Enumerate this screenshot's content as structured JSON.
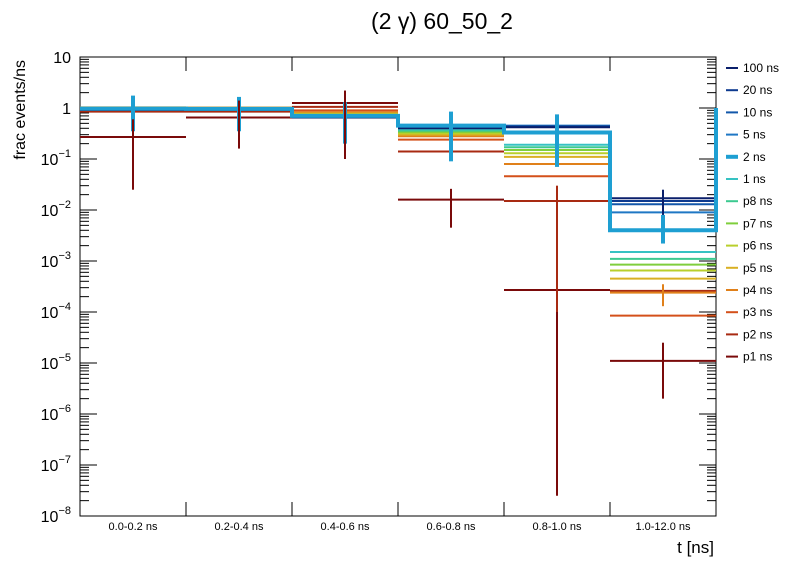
{
  "chart_data": {
    "type": "histogram",
    "title": "(2 γ) 60_50_2",
    "xlabel": "t [ns]",
    "ylabel": "frac events/ns",
    "yscale": "log",
    "ylim": [
      1e-08,
      10
    ],
    "categories": [
      "0.0-0.2 ns",
      "0.2-0.4 ns",
      "0.4-0.6 ns",
      "0.6-0.8 ns",
      "0.8-1.0 ns",
      "1.0-12.0 ns"
    ],
    "y_ticks": [
      {
        "exp": -8,
        "base": "10",
        "sup": "−8"
      },
      {
        "exp": -7,
        "base": "10",
        "sup": "−7"
      },
      {
        "exp": -6,
        "base": "10",
        "sup": "−6"
      },
      {
        "exp": -5,
        "base": "10",
        "sup": "−5"
      },
      {
        "exp": -4,
        "base": "10",
        "sup": "−4"
      },
      {
        "exp": -3,
        "base": "10",
        "sup": "−3"
      },
      {
        "exp": -2,
        "base": "10",
        "sup": "−2"
      },
      {
        "exp": -1,
        "base": "10",
        "sup": "−1"
      },
      {
        "exp": 0,
        "base": "1",
        "sup": ""
      },
      {
        "exp": 1,
        "base": "10",
        "sup": ""
      }
    ],
    "legend_position": "right",
    "highlight_series": "2 ns",
    "series": [
      {
        "name": "100 ns",
        "color": "#0a1f6b",
        "values": [
          0.92,
          0.92,
          0.65,
          0.4,
          0.42,
          0.017
        ]
      },
      {
        "name": "20 ns",
        "color": "#0d3a8f",
        "values": [
          0.93,
          0.93,
          0.66,
          0.41,
          0.43,
          0.015
        ]
      },
      {
        "name": "10 ns",
        "color": "#1257aa",
        "values": [
          0.94,
          0.94,
          0.67,
          0.42,
          0.44,
          0.013
        ]
      },
      {
        "name": "5 ns",
        "color": "#1f77c4",
        "values": [
          0.95,
          0.95,
          0.69,
          0.43,
          0.45,
          0.009
        ]
      },
      {
        "name": "2 ns",
        "color": "#1e9fd2",
        "values": [
          0.97,
          0.96,
          0.7,
          0.45,
          0.33,
          0.004
        ]
      },
      {
        "name": "1 ns",
        "color": "#36c2c2",
        "values": [
          0.98,
          0.97,
          0.71,
          0.38,
          0.19,
          0.0015
        ]
      },
      {
        "name": "p8 ns",
        "color": "#3cc990",
        "values": [
          0.99,
          0.98,
          0.72,
          0.36,
          0.17,
          0.0011
        ]
      },
      {
        "name": "p7 ns",
        "color": "#7fce3c",
        "values": [
          1.0,
          0.99,
          0.73,
          0.34,
          0.15,
          0.00085
        ]
      },
      {
        "name": "p6 ns",
        "color": "#b9cf2c",
        "values": [
          1.01,
          1.0,
          0.75,
          0.32,
          0.13,
          0.00065
        ]
      },
      {
        "name": "p5 ns",
        "color": "#d9b023",
        "values": [
          1.02,
          1.01,
          0.78,
          0.3,
          0.11,
          0.00045
        ]
      },
      {
        "name": "p4 ns",
        "color": "#e0801a",
        "values": [
          1.03,
          1.02,
          0.82,
          0.28,
          0.08,
          0.00024
        ]
      },
      {
        "name": "p3 ns",
        "color": "#d4501a",
        "values": [
          1.0,
          1.0,
          0.9,
          0.24,
          0.046,
          8.5e-05
        ]
      },
      {
        "name": "p2 ns",
        "color": "#a82a12",
        "values": [
          0.85,
          0.85,
          1.05,
          0.14,
          0.015,
          0.00026
        ]
      },
      {
        "name": "p1 ns",
        "color": "#7a0a0a",
        "values": [
          0.27,
          0.65,
          1.25,
          0.016,
          0.00027,
          1.1e-05
        ]
      }
    ],
    "error_bars": [
      {
        "series": "2 ns",
        "bin": 0,
        "low": 0.35,
        "high": 1.75
      },
      {
        "series": "2 ns",
        "bin": 1,
        "low": 0.35,
        "high": 1.65
      },
      {
        "series": "2 ns",
        "bin": 2,
        "low": 0.2,
        "high": 1.3
      },
      {
        "series": "2 ns",
        "bin": 3,
        "low": 0.09,
        "high": 0.85
      },
      {
        "series": "2 ns",
        "bin": 4,
        "low": 0.07,
        "high": 0.75
      },
      {
        "series": "2 ns",
        "bin": 5,
        "low": 0.0022,
        "high": 0.008
      },
      {
        "series": "p1 ns",
        "bin": 0,
        "low": 0.025,
        "high": 0.6
      },
      {
        "series": "p1 ns",
        "bin": 1,
        "low": 0.16,
        "high": 1.4
      },
      {
        "series": "p1 ns",
        "bin": 2,
        "low": 0.1,
        "high": 2.2
      },
      {
        "series": "p1 ns",
        "bin": 3,
        "low": 0.0045,
        "high": 0.026
      },
      {
        "series": "p1 ns",
        "bin": 4,
        "low": 2.5e-08,
        "high": 0.0045
      },
      {
        "series": "p1 ns",
        "bin": 5,
        "low": 2e-06,
        "high": 2.5e-05
      },
      {
        "series": "100 ns",
        "bin": 5,
        "low": 0.008,
        "high": 0.025
      },
      {
        "series": "p2 ns",
        "bin": 4,
        "low": 0.0001,
        "high": 0.03
      },
      {
        "series": "p4 ns",
        "bin": 5,
        "low": 0.00013,
        "high": 0.00035
      }
    ]
  }
}
